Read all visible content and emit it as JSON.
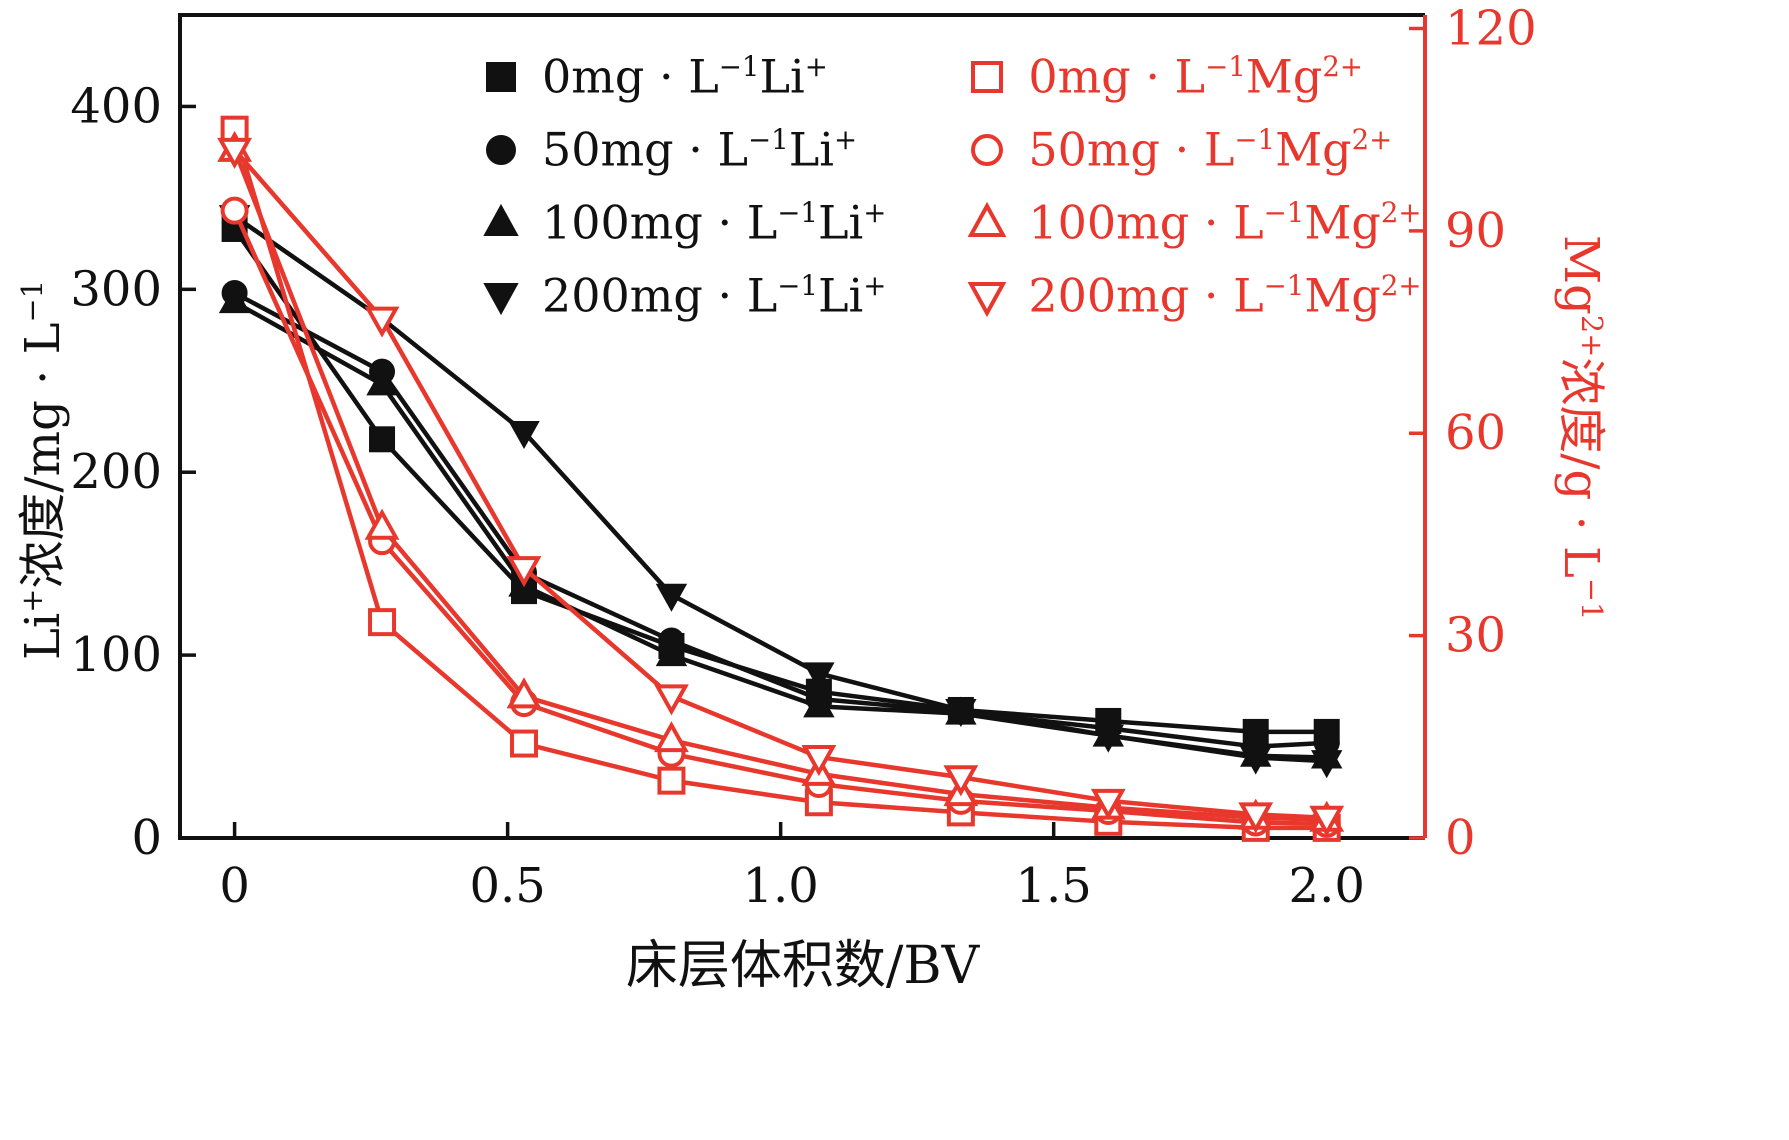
{
  "chart_data": {
    "type": "line",
    "title": "",
    "legend_position": "top-inside",
    "x_axis": {
      "label": "床层体积数/BV",
      "label_segments": [
        {
          "t": "床层体积数/BV"
        }
      ],
      "range": [
        -0.1,
        2.18
      ],
      "ticks": [
        {
          "v": 0,
          "label": "0"
        },
        {
          "v": 0.5,
          "label": "0.5"
        },
        {
          "v": 1,
          "label": "1.0"
        },
        {
          "v": 1.5,
          "label": "1.5"
        },
        {
          "v": 2,
          "label": "2.0"
        }
      ],
      "color": "#111111"
    },
    "left_axis": {
      "label": "Li⁺浓度/mg·L⁻¹",
      "label_segments": [
        {
          "t": "Li"
        },
        {
          "t": "+",
          "sup": true
        },
        {
          "t": "浓度/mg · L"
        },
        {
          "t": "−1",
          "sup": true
        }
      ],
      "range": [
        0,
        450
      ],
      "ticks": [
        {
          "v": 0,
          "label": "0"
        },
        {
          "v": 100,
          "label": "100"
        },
        {
          "v": 200,
          "label": "200"
        },
        {
          "v": 300,
          "label": "300"
        },
        {
          "v": 400,
          "label": "400"
        }
      ],
      "color": "#111111"
    },
    "right_axis": {
      "label": "Mg²⁺浓度/g·L⁻¹",
      "label_segments": [
        {
          "t": "Mg"
        },
        {
          "t": "2+",
          "sup": true
        },
        {
          "t": "浓度/g · L"
        },
        {
          "t": "−1",
          "sup": true
        }
      ],
      "range": [
        0,
        122
      ],
      "ticks": [
        {
          "v": 0,
          "label": "0"
        },
        {
          "v": 30,
          "label": "30"
        },
        {
          "v": 60,
          "label": "60"
        },
        {
          "v": 90,
          "label": "90"
        },
        {
          "v": 120,
          "label": "120"
        }
      ],
      "color": "#e8382d"
    },
    "x": [
      0,
      0.27,
      0.53,
      0.8,
      1.07,
      1.33,
      1.6,
      1.87,
      2.0
    ],
    "series": [
      {
        "id": "li-0",
        "name": "0mg·L⁻¹Li⁺",
        "axis": "left",
        "marker": "square",
        "open": false,
        "color": "#111111",
        "label_segments": [
          {
            "t": "0mg · L"
          },
          {
            "t": "−1",
            "sup": true
          },
          {
            "t": "Li"
          },
          {
            "t": "+",
            "sup": true
          }
        ],
        "values": [
          333,
          218,
          135,
          105,
          80,
          70,
          64,
          58,
          58
        ]
      },
      {
        "id": "li-50",
        "name": "50mg·L⁻¹Li⁺",
        "axis": "left",
        "marker": "circle",
        "open": false,
        "color": "#111111",
        "label_segments": [
          {
            "t": "50mg · L"
          },
          {
            "t": "−1",
            "sup": true
          },
          {
            "t": "Li"
          },
          {
            "t": "+",
            "sup": true
          }
        ],
        "values": [
          298,
          255,
          145,
          108,
          76,
          69,
          60,
          50,
          52
        ]
      },
      {
        "id": "li-100",
        "name": "100mg·L⁻¹Li⁺",
        "axis": "left",
        "marker": "triangle-up",
        "open": false,
        "color": "#111111",
        "label_segments": [
          {
            "t": "100mg · L"
          },
          {
            "t": "−1",
            "sup": true
          },
          {
            "t": "Li"
          },
          {
            "t": "+",
            "sup": true
          }
        ],
        "values": [
          293,
          248,
          138,
          100,
          72,
          68,
          56,
          45,
          44
        ]
      },
      {
        "id": "li-200",
        "name": "200mg·L⁻¹Li⁺",
        "axis": "left",
        "marker": "triangle-down",
        "open": false,
        "color": "#111111",
        "label_segments": [
          {
            "t": "200mg · L"
          },
          {
            "t": "−1",
            "sup": true
          },
          {
            "t": "Li"
          },
          {
            "t": "+",
            "sup": true
          }
        ],
        "values": [
          340,
          284,
          222,
          133,
          90,
          70,
          56,
          44,
          42
        ]
      },
      {
        "id": "mg-0",
        "name": "0mg·L⁻¹Mg²⁺",
        "axis": "right",
        "marker": "square",
        "open": true,
        "color": "#e8382d",
        "label_segments": [
          {
            "t": "0mg · L"
          },
          {
            "t": "−1",
            "sup": true
          },
          {
            "t": "Mg"
          },
          {
            "t": "2+",
            "sup": true
          }
        ],
        "values": [
          105,
          32,
          14,
          8.5,
          5.3,
          3.8,
          2.4,
          1.5,
          1.5
        ]
      },
      {
        "id": "mg-50",
        "name": "50mg·L⁻¹Mg²⁺",
        "axis": "right",
        "marker": "circle",
        "open": true,
        "color": "#e8382d",
        "label_segments": [
          {
            "t": "50mg · L"
          },
          {
            "t": "−1",
            "sup": true
          },
          {
            "t": "Mg"
          },
          {
            "t": "2+",
            "sup": true
          }
        ],
        "values": [
          93,
          44,
          20,
          12.5,
          8,
          5.5,
          4,
          2.3,
          2.1
        ]
      },
      {
        "id": "mg-100",
        "name": "100mg·L⁻¹Mg²⁺",
        "axis": "right",
        "marker": "triangle-up",
        "open": true,
        "color": "#e8382d",
        "label_segments": [
          {
            "t": "100mg · L"
          },
          {
            "t": "−1",
            "sup": true
          },
          {
            "t": "Mg"
          },
          {
            "t": "2+",
            "sup": true
          }
        ],
        "values": [
          102,
          46,
          21,
          14.5,
          9.5,
          6.5,
          4.5,
          3,
          2.7
        ]
      },
      {
        "id": "mg-200",
        "name": "200mg·L⁻¹Mg²⁺",
        "axis": "right",
        "marker": "triangle-down",
        "open": true,
        "color": "#e8382d",
        "label_segments": [
          {
            "t": "200mg · L"
          },
          {
            "t": "−1",
            "sup": true
          },
          {
            "t": "Mg"
          },
          {
            "t": "2+",
            "sup": true
          }
        ],
        "values": [
          102,
          77,
          40,
          21,
          12,
          9,
          5.5,
          3.5,
          3
        ]
      }
    ]
  }
}
